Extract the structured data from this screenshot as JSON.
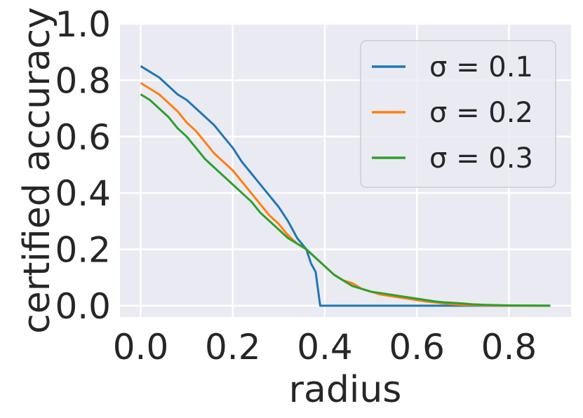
{
  "chart_data": {
    "type": "line",
    "title": "",
    "xlabel": "radius",
    "ylabel": "certified accuracy",
    "xlim": [
      -0.045,
      0.935
    ],
    "ylim": [
      -0.04,
      1.0
    ],
    "xticks": [
      0.0,
      0.2,
      0.4,
      0.6,
      0.8
    ],
    "xtick_labels": [
      "0.0",
      "0.2",
      "0.4",
      "0.6",
      "0.8"
    ],
    "yticks": [
      0.0,
      0.2,
      0.4,
      0.6,
      0.8,
      1.0
    ],
    "ytick_labels": [
      "0.0",
      "0.2",
      "0.4",
      "0.6",
      "0.8",
      "1.0"
    ],
    "grid": true,
    "legend_position": "top-right",
    "background_color": "#eaeaf2",
    "series": [
      {
        "name": "σ = 0.1",
        "color": "#1f77b4",
        "x": [
          0.0,
          0.02,
          0.04,
          0.06,
          0.08,
          0.1,
          0.12,
          0.14,
          0.16,
          0.18,
          0.2,
          0.22,
          0.24,
          0.26,
          0.28,
          0.3,
          0.32,
          0.34,
          0.36,
          0.37,
          0.38,
          0.39,
          0.4,
          0.5,
          0.6,
          0.7,
          0.8,
          0.89
        ],
        "y": [
          0.85,
          0.83,
          0.81,
          0.78,
          0.75,
          0.73,
          0.7,
          0.67,
          0.64,
          0.6,
          0.56,
          0.51,
          0.47,
          0.43,
          0.39,
          0.35,
          0.3,
          0.24,
          0.2,
          0.15,
          0.12,
          0.0,
          0.0,
          0.0,
          0.0,
          0.0,
          0.0,
          0.0
        ]
      },
      {
        "name": "σ = 0.2",
        "color": "#ff7f0e",
        "x": [
          0.0,
          0.02,
          0.04,
          0.06,
          0.08,
          0.1,
          0.12,
          0.14,
          0.16,
          0.18,
          0.2,
          0.22,
          0.24,
          0.26,
          0.28,
          0.3,
          0.32,
          0.34,
          0.36,
          0.38,
          0.4,
          0.42,
          0.44,
          0.46,
          0.48,
          0.5,
          0.52,
          0.54,
          0.56,
          0.58,
          0.6,
          0.62,
          0.64,
          0.66,
          0.68,
          0.7,
          0.75,
          0.8,
          0.89
        ],
        "y": [
          0.79,
          0.77,
          0.75,
          0.72,
          0.69,
          0.65,
          0.62,
          0.58,
          0.54,
          0.51,
          0.48,
          0.44,
          0.4,
          0.36,
          0.32,
          0.29,
          0.25,
          0.22,
          0.2,
          0.17,
          0.14,
          0.11,
          0.09,
          0.08,
          0.06,
          0.05,
          0.04,
          0.035,
          0.03,
          0.025,
          0.02,
          0.015,
          0.012,
          0.008,
          0.005,
          0.003,
          0.001,
          0.0,
          0.0
        ]
      },
      {
        "name": "σ = 0.3",
        "color": "#2ca02c",
        "x": [
          0.0,
          0.02,
          0.04,
          0.06,
          0.08,
          0.1,
          0.12,
          0.14,
          0.16,
          0.18,
          0.2,
          0.22,
          0.24,
          0.26,
          0.28,
          0.3,
          0.32,
          0.34,
          0.36,
          0.38,
          0.4,
          0.42,
          0.44,
          0.46,
          0.48,
          0.5,
          0.52,
          0.54,
          0.56,
          0.58,
          0.6,
          0.62,
          0.64,
          0.66,
          0.68,
          0.7,
          0.72,
          0.75,
          0.8,
          0.89
        ],
        "y": [
          0.75,
          0.73,
          0.7,
          0.67,
          0.63,
          0.6,
          0.56,
          0.52,
          0.49,
          0.46,
          0.43,
          0.4,
          0.37,
          0.33,
          0.3,
          0.27,
          0.24,
          0.22,
          0.2,
          0.17,
          0.14,
          0.11,
          0.09,
          0.07,
          0.06,
          0.05,
          0.045,
          0.04,
          0.035,
          0.03,
          0.025,
          0.02,
          0.015,
          0.012,
          0.01,
          0.008,
          0.005,
          0.003,
          0.001,
          0.0
        ]
      }
    ]
  }
}
